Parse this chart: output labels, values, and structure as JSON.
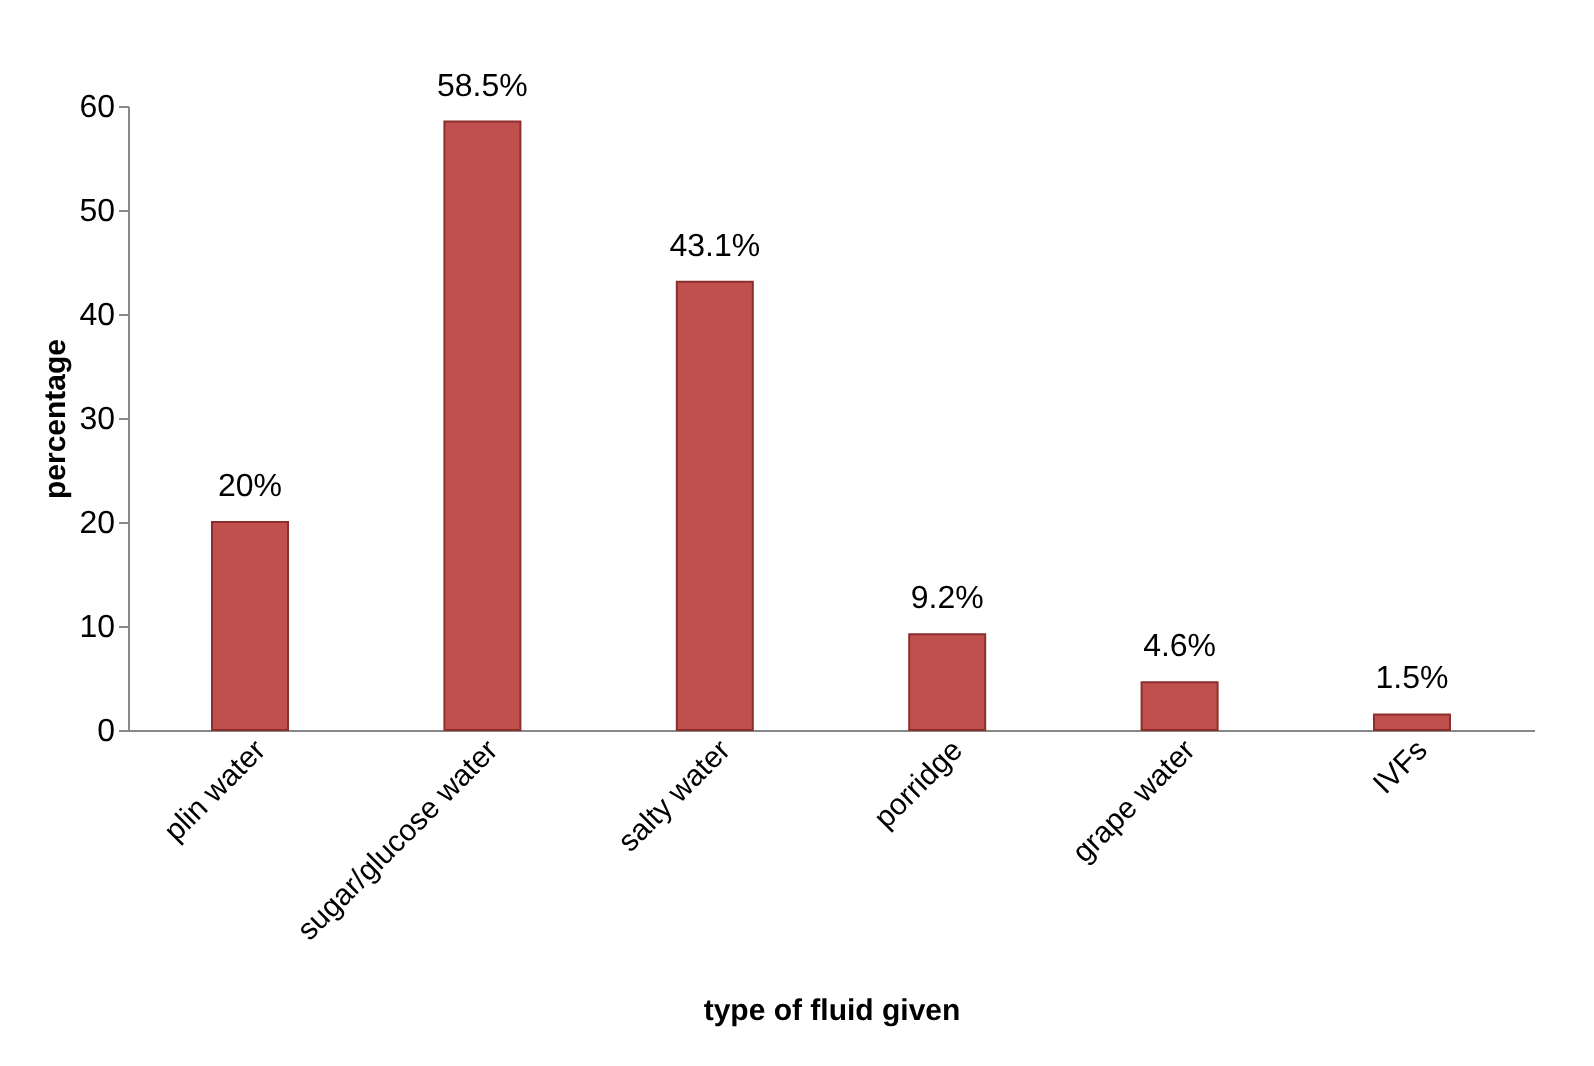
{
  "chart_data": {
    "type": "bar",
    "categories": [
      "plin water",
      "sugar/glucose water",
      "salty water",
      "porridge",
      "grape water",
      "IVFs"
    ],
    "values": [
      20,
      58.5,
      43.1,
      9.2,
      4.6,
      1.5
    ],
    "value_labels": [
      "20%",
      "58.5%",
      "43.1%",
      "9.2%",
      "4.6%",
      "1.5%"
    ],
    "color": "#c0504d",
    "xlabel": "type of fluid given",
    "ylabel": "percentage",
    "ylim": [
      0,
      60
    ],
    "yticks": [
      0,
      10,
      20,
      30,
      40,
      50,
      60
    ]
  }
}
